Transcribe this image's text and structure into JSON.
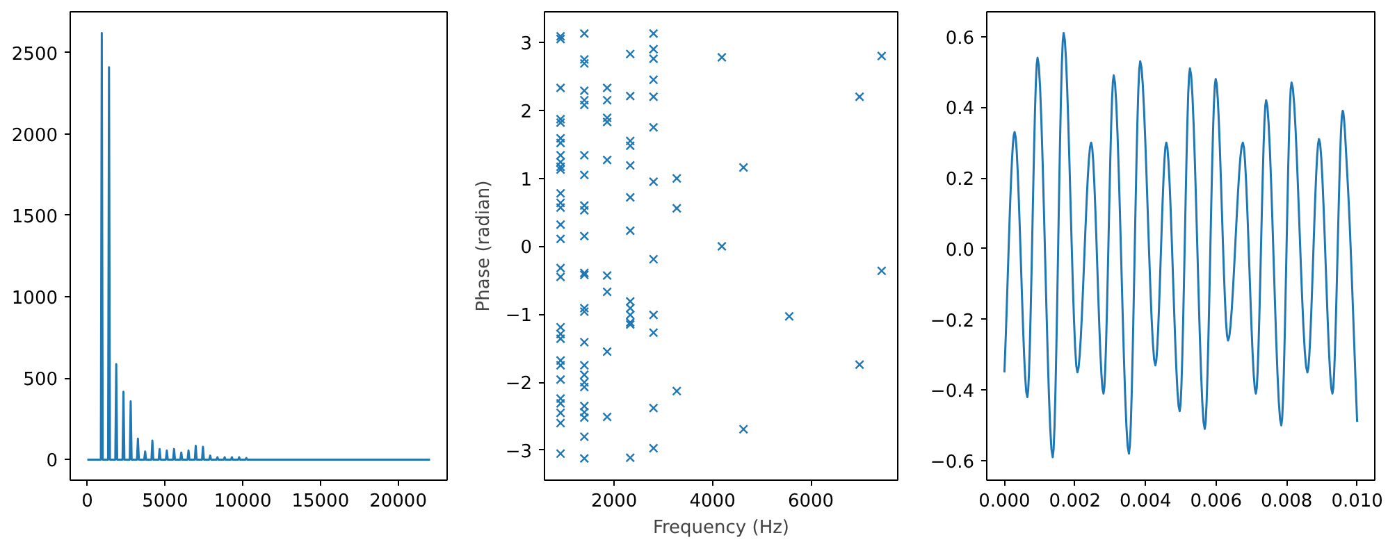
{
  "chart_data": [
    {
      "type": "line",
      "color": "#1f77b4",
      "grid": false,
      "marker": "none",
      "line_style": "solid",
      "x": [
        0,
        870,
        930,
        990,
        1335,
        1395,
        1455,
        1800,
        1860,
        1920,
        2265,
        2325,
        2385,
        2730,
        2790,
        2850,
        3195,
        3255,
        3315,
        3660,
        3720,
        3780,
        4125,
        4185,
        4245,
        4590,
        4650,
        4710,
        5055,
        5115,
        5175,
        5520,
        5580,
        5640,
        5985,
        6045,
        6105,
        6450,
        6510,
        6570,
        6915,
        6975,
        7035,
        7380,
        7440,
        7500,
        7845,
        7905,
        7965,
        8310,
        8370,
        8430,
        8775,
        8835,
        8895,
        9240,
        9300,
        9360,
        9705,
        9765,
        9825,
        10170,
        10230,
        10290,
        22050
      ],
      "values": [
        0,
        0,
        2620,
        0,
        0,
        2410,
        0,
        0,
        587,
        0,
        0,
        417,
        0,
        0,
        358,
        0,
        0,
        129,
        0,
        0,
        50,
        0,
        0,
        117,
        0,
        0,
        65,
        0,
        0,
        56,
        0,
        0,
        65,
        0,
        0,
        44,
        0,
        0,
        56,
        0,
        0,
        85,
        0,
        0,
        79,
        0,
        0,
        25,
        0,
        0,
        15,
        0,
        0,
        15,
        0,
        0,
        15,
        0,
        0,
        15,
        0,
        0,
        10,
        0,
        0
      ],
      "xlim": [
        -1100,
        23150
      ],
      "ylim": [
        -126,
        2750
      ],
      "xticks": [
        0,
        5000,
        10000,
        15000,
        20000
      ],
      "yticks": [
        0,
        500,
        1000,
        1500,
        2000,
        2500
      ]
    },
    {
      "type": "scatter",
      "color": "#1f77b4",
      "grid": false,
      "marker": "cross",
      "xlabel": "Frequency (Hz)",
      "ylabel": "Phase (radian)",
      "x": [
        910,
        910,
        910,
        910,
        910,
        910,
        910,
        910,
        910,
        910,
        910,
        910,
        910,
        910,
        910,
        910,
        910,
        910,
        910,
        910,
        910,
        910,
        910,
        910,
        910,
        910,
        910,
        910,
        910,
        1393,
        1393,
        1393,
        1393,
        1393,
        1393,
        1393,
        1393,
        1393,
        1393,
        1393,
        1393,
        1393,
        1393,
        1393,
        1393,
        1393,
        1393,
        1393,
        1393,
        1393,
        1393,
        1393,
        1393,
        1393,
        1857,
        1857,
        1857,
        1857,
        1857,
        1857,
        1857,
        1857,
        1857,
        2327,
        2327,
        2327,
        2327,
        2327,
        2327,
        2327,
        2327,
        2327,
        2327,
        2327,
        2327,
        2327,
        2800,
        2800,
        2800,
        2800,
        2800,
        2800,
        2800,
        2800,
        2800,
        2800,
        2800,
        2800,
        3273,
        3273,
        3273,
        4190,
        4190,
        4630,
        4630,
        5560,
        6990,
        6990,
        7440,
        7440
      ],
      "values": [
        3.09,
        3.05,
        2.33,
        1.87,
        1.82,
        1.59,
        1.52,
        1.34,
        1.24,
        1.17,
        1.13,
        0.78,
        0.64,
        0.57,
        0.32,
        0.11,
        -0.32,
        -0.45,
        -1.19,
        -1.29,
        -1.36,
        -1.68,
        -1.75,
        -1.96,
        -2.24,
        -2.31,
        -2.45,
        -2.6,
        -3.05,
        3.13,
        2.75,
        2.69,
        2.29,
        2.15,
        2.08,
        1.34,
        1.05,
        0.6,
        0.53,
        0.15,
        -0.39,
        -0.42,
        -0.91,
        -0.96,
        -1.41,
        -1.75,
        -1.89,
        -2.0,
        -2.07,
        -2.35,
        -2.44,
        -2.52,
        -2.8,
        -3.12,
        2.33,
        2.15,
        1.89,
        1.83,
        1.27,
        -0.43,
        -0.67,
        -1.55,
        -2.51,
        2.83,
        2.21,
        1.55,
        1.48,
        1.19,
        0.72,
        0.23,
        -0.81,
        -0.91,
        -1.01,
        -1.12,
        -1.15,
        -3.11,
        3.13,
        2.9,
        2.76,
        2.45,
        2.2,
        1.75,
        0.95,
        -0.19,
        -1.01,
        -1.27,
        -2.38,
        -2.97,
        1.0,
        0.56,
        -2.13,
        2.78,
        0,
        1.16,
        -2.69,
        -1.03,
        2.2,
        -1.74,
        2.8,
        -0.36
      ],
      "xlim": [
        583,
        7767
      ],
      "ylim": [
        -3.44,
        3.45
      ],
      "xticks": [
        2000,
        4000,
        6000
      ],
      "yticks": [
        {
          "value": -3,
          "label": "−3"
        },
        {
          "value": -2,
          "label": "−2"
        },
        {
          "value": -1,
          "label": "−1"
        },
        0,
        1,
        2,
        3
      ]
    },
    {
      "type": "line",
      "color": "#1f77b4",
      "grid": false,
      "marker": "none",
      "line_style": "solid",
      "x": [
        0,
        0.00029,
        0.00065,
        0.00094,
        0.00137,
        0.00168,
        0.00207,
        0.00246,
        0.00281,
        0.0031,
        0.00353,
        0.00385,
        0.00428,
        0.00459,
        0.00497,
        0.00526,
        0.00568,
        0.00599,
        0.00634,
        0.00676,
        0.00713,
        0.00742,
        0.00785,
        0.00814,
        0.00859,
        0.00892,
        0.0093,
        0.00959,
        0.00972,
        0.01
      ],
      "values": [
        -0.35,
        0.33,
        -0.42,
        0.54,
        -0.59,
        0.61,
        -0.35,
        0.3,
        -0.41,
        0.49,
        -0.58,
        0.53,
        -0.33,
        0.3,
        -0.46,
        0.51,
        -0.51,
        0.48,
        -0.26,
        0.3,
        -0.41,
        0.42,
        -0.5,
        0.47,
        -0.35,
        0.31,
        -0.41,
        0.39,
        0.21,
        -0.49
      ],
      "xlim": [
        -0.0005,
        0.0105
      ],
      "ylim": [
        -0.655,
        0.67
      ],
      "xticks": [
        {
          "value": 0,
          "label": "0.000"
        },
        {
          "value": 0.002,
          "label": "0.002"
        },
        {
          "value": 0.004,
          "label": "0.004"
        },
        {
          "value": 0.006,
          "label": "0.006"
        },
        {
          "value": 0.008,
          "label": "0.008"
        },
        {
          "value": 0.01,
          "label": "0.010"
        }
      ],
      "yticks": [
        {
          "value": -0.6,
          "label": "−0.6"
        },
        {
          "value": -0.4,
          "label": "−0.4"
        },
        {
          "value": -0.2,
          "label": "−0.2"
        },
        {
          "value": 0,
          "label": "0.0"
        },
        {
          "value": 0.2,
          "label": "0.2"
        },
        {
          "value": 0.4,
          "label": "0.4"
        },
        {
          "value": 0.6,
          "label": "0.6"
        }
      ]
    }
  ]
}
